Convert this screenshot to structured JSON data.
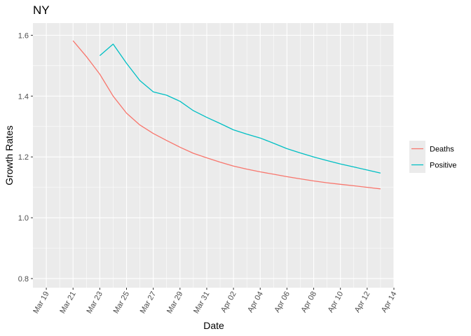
{
  "chart_data": {
    "type": "line",
    "title": "NY",
    "xlabel": "Date",
    "ylabel": "Growth Rates",
    "x_ticks": [
      "Mar 19",
      "Mar 21",
      "Mar 23",
      "Mar 25",
      "Mar 27",
      "Mar 29",
      "Mar 31",
      "Apr 02",
      "Apr 04",
      "Apr 06",
      "Apr 08",
      "Apr 10",
      "Apr 12",
      "Apr 14"
    ],
    "y_ticks": [
      "0.8",
      "1.0",
      "1.2",
      "1.4",
      "1.6"
    ],
    "xlim": [
      "2020-03-18",
      "2020-04-14"
    ],
    "ylim": [
      0.77,
      1.64
    ],
    "grid": true,
    "legend_position": "right",
    "series": [
      {
        "name": "Deaths",
        "color": "#F8766D",
        "x": [
          "2020-03-21",
          "2020-03-22",
          "2020-03-23",
          "2020-03-24",
          "2020-03-25",
          "2020-03-26",
          "2020-03-27",
          "2020-03-28",
          "2020-03-29",
          "2020-03-30",
          "2020-03-31",
          "2020-04-01",
          "2020-04-02",
          "2020-04-03",
          "2020-04-04",
          "2020-04-05",
          "2020-04-06",
          "2020-04-07",
          "2020-04-08",
          "2020-04-09",
          "2020-04-10",
          "2020-04-11",
          "2020-04-12",
          "2020-04-13"
        ],
        "y": [
          1.582,
          1.53,
          1.472,
          1.4,
          1.344,
          1.305,
          1.277,
          1.254,
          1.232,
          1.212,
          1.197,
          1.183,
          1.17,
          1.16,
          1.151,
          1.143,
          1.135,
          1.128,
          1.121,
          1.115,
          1.11,
          1.105,
          1.1,
          1.095
        ]
      },
      {
        "name": "Positive",
        "color": "#00BFC4",
        "x": [
          "2020-03-23",
          "2020-03-24",
          "2020-03-25",
          "2020-03-26",
          "2020-03-27",
          "2020-03-28",
          "2020-03-29",
          "2020-03-30",
          "2020-03-31",
          "2020-04-01",
          "2020-04-02",
          "2020-04-03",
          "2020-04-04",
          "2020-04-05",
          "2020-04-06",
          "2020-04-07",
          "2020-04-08",
          "2020-04-09",
          "2020-04-10",
          "2020-04-11",
          "2020-04-12",
          "2020-04-13"
        ],
        "y": [
          1.533,
          1.571,
          1.508,
          1.451,
          1.414,
          1.403,
          1.383,
          1.352,
          1.33,
          1.31,
          1.289,
          1.275,
          1.262,
          1.245,
          1.227,
          1.213,
          1.2,
          1.188,
          1.177,
          1.167,
          1.157,
          1.147
        ]
      }
    ]
  },
  "colors": {
    "panel_background": "#EBEBEB",
    "grid_major": "#FFFFFF"
  }
}
